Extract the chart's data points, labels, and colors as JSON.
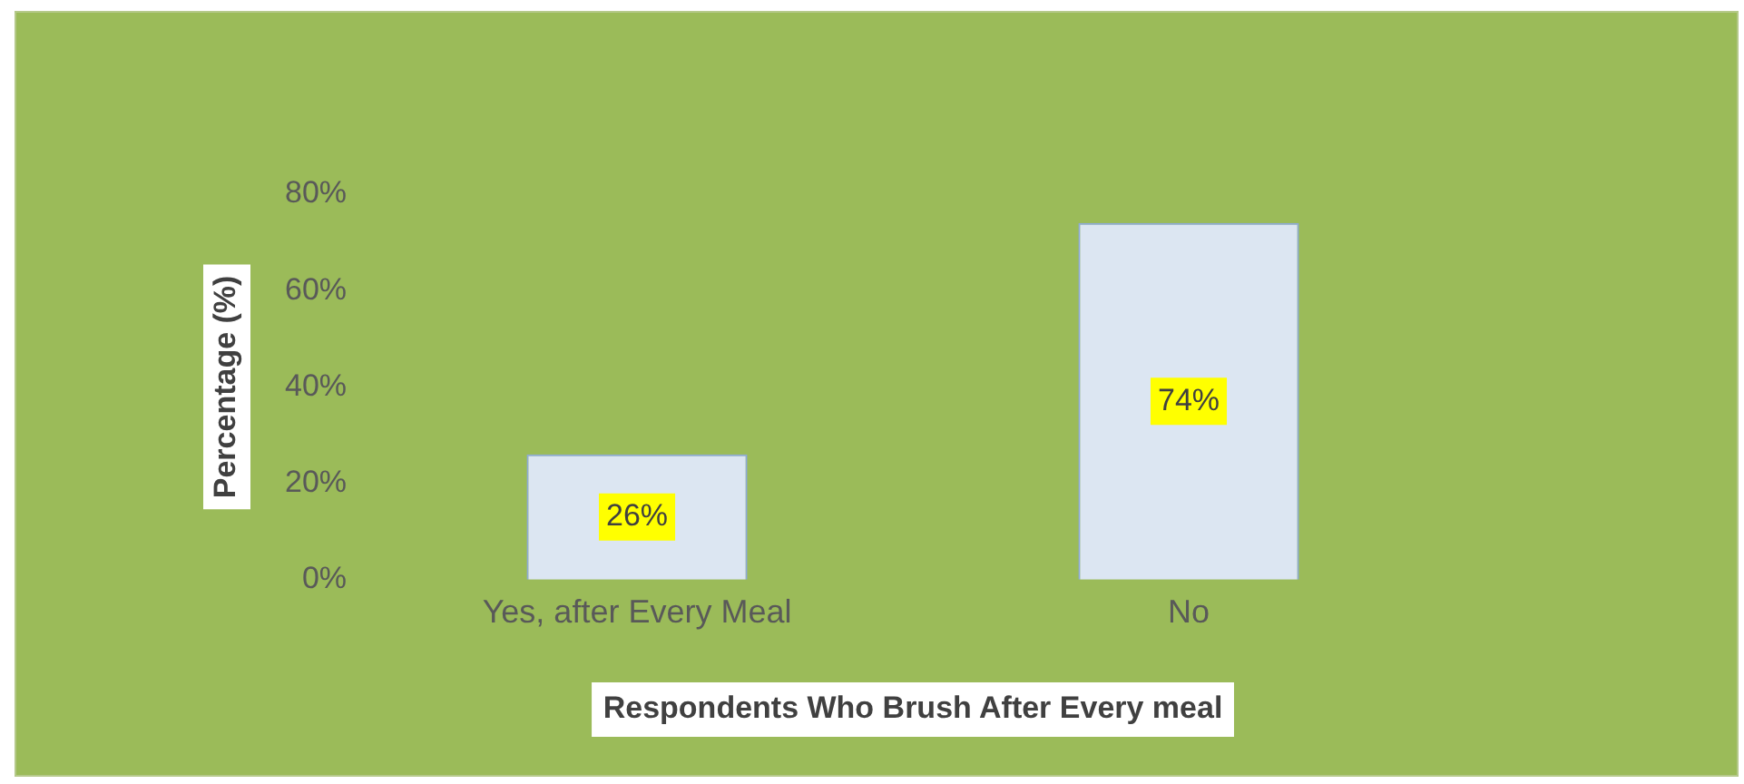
{
  "chart_data": {
    "type": "bar",
    "xlabel": "Respondents Who Brush After Every meal",
    "ylabel": "Percentage (%)",
    "categories": [
      "Yes, after Every Meal",
      "No"
    ],
    "values": [
      26,
      74
    ],
    "color": "#dce6f2",
    "value_labels": [
      "26%",
      "74%"
    ],
    "ylim": [
      0,
      80
    ],
    "yticks": [
      {
        "value": 0,
        "label": "0%"
      },
      {
        "value": 20,
        "label": "20%"
      },
      {
        "value": 40,
        "label": "40%"
      },
      {
        "value": 60,
        "label": "60%"
      },
      {
        "value": 80,
        "label": "80%"
      }
    ],
    "grid": false,
    "legend": false
  }
}
